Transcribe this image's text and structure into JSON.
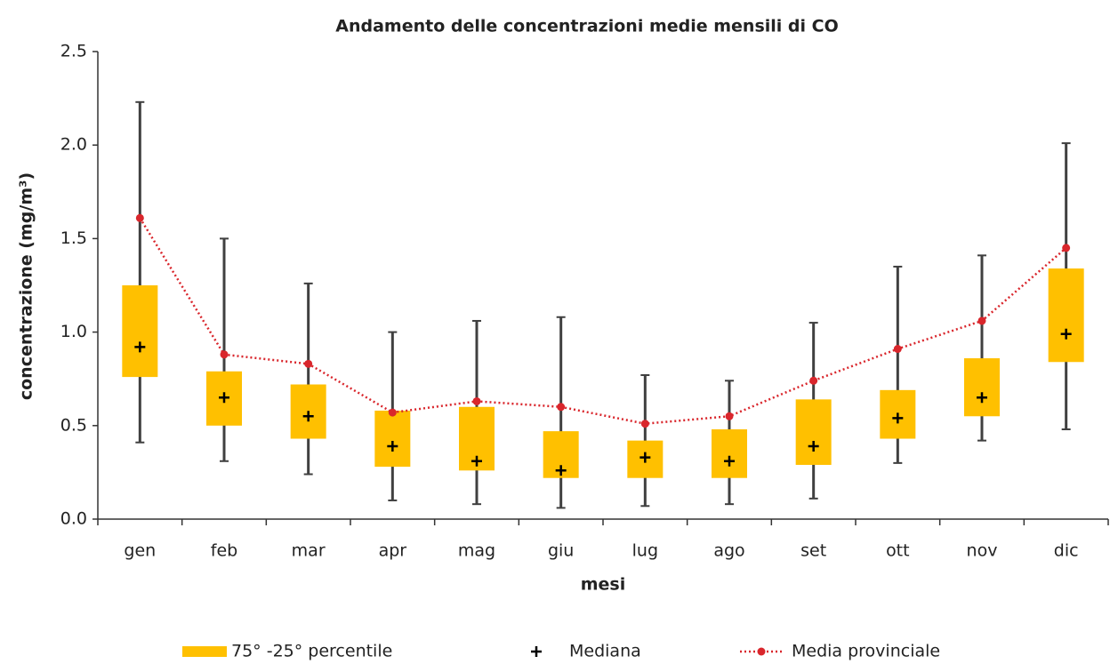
{
  "chart_data": {
    "type": "box",
    "title": "Andamento delle concentrazioni medie mensili di CO",
    "x_label": "mesi",
    "y_label": "concentrazione (mg/m³)",
    "categories": [
      "gen",
      "feb",
      "mar",
      "apr",
      "mag",
      "giu",
      "lug",
      "ago",
      "set",
      "ott",
      "nov",
      "dic"
    ],
    "max": [
      2.23,
      1.5,
      1.26,
      1.0,
      1.06,
      1.08,
      0.77,
      0.74,
      1.05,
      1.35,
      1.41,
      2.01
    ],
    "min": [
      0.41,
      0.31,
      0.24,
      0.1,
      0.08,
      0.06,
      0.07,
      0.08,
      0.11,
      0.3,
      0.42,
      0.48
    ],
    "whisker_color": "#404040",
    "series": [
      {
        "name": "75° -25° percentile",
        "color": "#ffc000",
        "q3": [
          1.25,
          0.79,
          0.72,
          0.58,
          0.6,
          0.47,
          0.42,
          0.48,
          0.64,
          0.69,
          0.86,
          1.34
        ],
        "q1": [
          0.76,
          0.5,
          0.43,
          0.28,
          0.26,
          0.22,
          0.22,
          0.22,
          0.29,
          0.43,
          0.55,
          0.84
        ]
      },
      {
        "name": "Mediana",
        "color": "#000000",
        "values": [
          0.92,
          0.65,
          0.55,
          0.39,
          0.31,
          0.26,
          0.33,
          0.31,
          0.39,
          0.54,
          0.65,
          0.99
        ]
      },
      {
        "name": "Media provinciale",
        "color": "#d9262c",
        "values": [
          1.61,
          0.88,
          0.83,
          0.57,
          0.63,
          0.6,
          0.51,
          0.55,
          0.74,
          0.91,
          1.06,
          1.45
        ]
      }
    ],
    "ylim": [
      0,
      2.5
    ],
    "yticks": [
      {
        "value": 0,
        "label": "0.0"
      },
      0.5,
      {
        "value": 1,
        "label": "1.0"
      },
      1.5,
      {
        "value": 2,
        "label": "2.0"
      },
      2.5
    ]
  }
}
